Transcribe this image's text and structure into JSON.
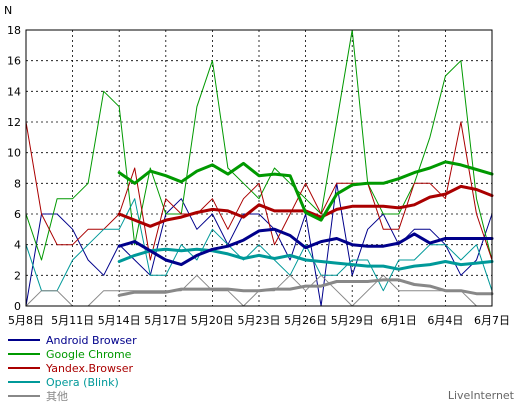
{
  "chart_data": {
    "type": "line",
    "ylabel": "N",
    "ylim": [
      0,
      18
    ],
    "yticks": [
      0,
      2,
      4,
      6,
      8,
      10,
      12,
      14,
      16,
      18
    ],
    "x_dates": [
      "5月8日",
      "5月9日",
      "5月10日",
      "5月11日",
      "5月12日",
      "5月13日",
      "5月14日",
      "5月15日",
      "5月16日",
      "5月17日",
      "5月18日",
      "5月19日",
      "5月20日",
      "5月21日",
      "5月22日",
      "5月23日",
      "5月24日",
      "5月25日",
      "5月26日",
      "5月27日",
      "5月28日",
      "5月29日",
      "5月30日",
      "5月31日",
      "6月1日",
      "6月2日",
      "6月3日",
      "6月4日",
      "6月5日",
      "6月6日",
      "6月7日"
    ],
    "x_tick_labels": [
      "5月8日",
      "5月11日",
      "5月14日",
      "5月17日",
      "5月20日",
      "5月23日",
      "5月26日",
      "5月29日",
      "6月1日",
      "6月4日",
      "6月7日"
    ],
    "grid": true,
    "legend_position": "bottom-left",
    "series": [
      {
        "name": "Android Browser",
        "color": "#00008b",
        "daily": [
          0,
          6,
          6,
          5,
          3,
          2,
          4,
          3,
          2,
          6,
          7,
          5,
          6,
          4,
          6,
          6,
          5,
          3,
          6,
          0,
          8,
          2,
          5,
          6,
          4,
          5,
          5,
          4,
          2,
          3,
          6
        ],
        "average": [
          null,
          null,
          null,
          null,
          null,
          null,
          3.9,
          4.2,
          3.6,
          3.0,
          2.7,
          3.3,
          3.7,
          3.9,
          4.3,
          4.9,
          5.0,
          4.6,
          3.8,
          4.2,
          4.4,
          4.0,
          3.9,
          3.9,
          4.1,
          4.7,
          4.1,
          4.4,
          4.4,
          4.4,
          4.4
        ]
      },
      {
        "name": "Google Chrome",
        "color": "#009900",
        "daily": [
          6,
          3,
          7,
          7,
          8,
          14,
          13,
          4,
          9,
          6,
          6,
          13,
          16,
          9,
          8,
          7,
          9,
          8,
          7,
          6,
          12,
          18,
          8,
          6,
          6,
          8,
          11,
          15,
          16,
          7,
          3
        ],
        "average": [
          null,
          null,
          null,
          null,
          null,
          null,
          8.7,
          8.0,
          8.8,
          8.5,
          8.1,
          8.8,
          9.2,
          8.6,
          9.3,
          8.5,
          8.6,
          8.5,
          6.1,
          5.6,
          7.3,
          7.9,
          8.0,
          8.0,
          8.3,
          8.7,
          9.0,
          9.4,
          9.2,
          8.9,
          8.6
        ]
      },
      {
        "name": "Yandex.Browser",
        "color": "#aa0000",
        "daily": [
          12,
          6,
          4,
          4,
          5,
          5,
          6,
          9,
          3,
          7,
          6,
          6,
          7,
          5,
          7,
          8,
          4,
          6,
          8,
          6,
          8,
          8,
          8,
          5,
          5,
          8,
          8,
          7,
          12,
          6,
          3
        ],
        "average": [
          null,
          null,
          null,
          null,
          null,
          null,
          6.0,
          5.6,
          5.2,
          5.6,
          5.8,
          6.1,
          6.3,
          6.2,
          5.8,
          6.6,
          6.2,
          6.2,
          6.2,
          5.8,
          6.3,
          6.5,
          6.5,
          6.5,
          6.4,
          6.6,
          7.1,
          7.3,
          7.8,
          7.6,
          7.2
        ]
      },
      {
        "name": "Opera (Blink)",
        "color": "#009999",
        "daily": [
          4,
          1,
          1,
          3,
          4,
          5,
          5,
          7,
          2,
          2,
          4,
          3,
          5,
          4,
          3,
          4,
          3,
          2,
          4,
          2,
          2,
          3,
          3,
          1,
          3,
          3,
          4,
          4,
          3,
          4,
          1
        ],
        "average": [
          null,
          null,
          null,
          null,
          null,
          null,
          2.9,
          3.3,
          3.6,
          3.7,
          3.6,
          3.7,
          3.6,
          3.4,
          3.1,
          3.3,
          3.1,
          3.3,
          3.0,
          2.9,
          2.8,
          2.7,
          2.6,
          2.6,
          2.4,
          2.6,
          2.7,
          2.9,
          2.7,
          2.8,
          2.9
        ]
      },
      {
        "name": "其他",
        "color": "#888888",
        "daily": [
          0,
          1,
          1,
          0,
          0,
          1,
          1,
          1,
          1,
          1,
          1,
          2,
          1,
          1,
          0,
          1,
          1,
          2,
          1,
          2,
          1,
          0,
          1,
          2,
          1,
          1,
          1,
          1,
          1,
          0,
          0
        ],
        "average": [
          null,
          null,
          null,
          null,
          null,
          null,
          0.7,
          0.9,
          0.9,
          0.9,
          1.1,
          1.1,
          1.1,
          1.1,
          1.0,
          1.0,
          1.1,
          1.1,
          1.3,
          1.3,
          1.6,
          1.6,
          1.6,
          1.7,
          1.7,
          1.4,
          1.3,
          1.0,
          1.0,
          0.8,
          0.8
        ]
      }
    ]
  },
  "brand": "LiveInternet"
}
